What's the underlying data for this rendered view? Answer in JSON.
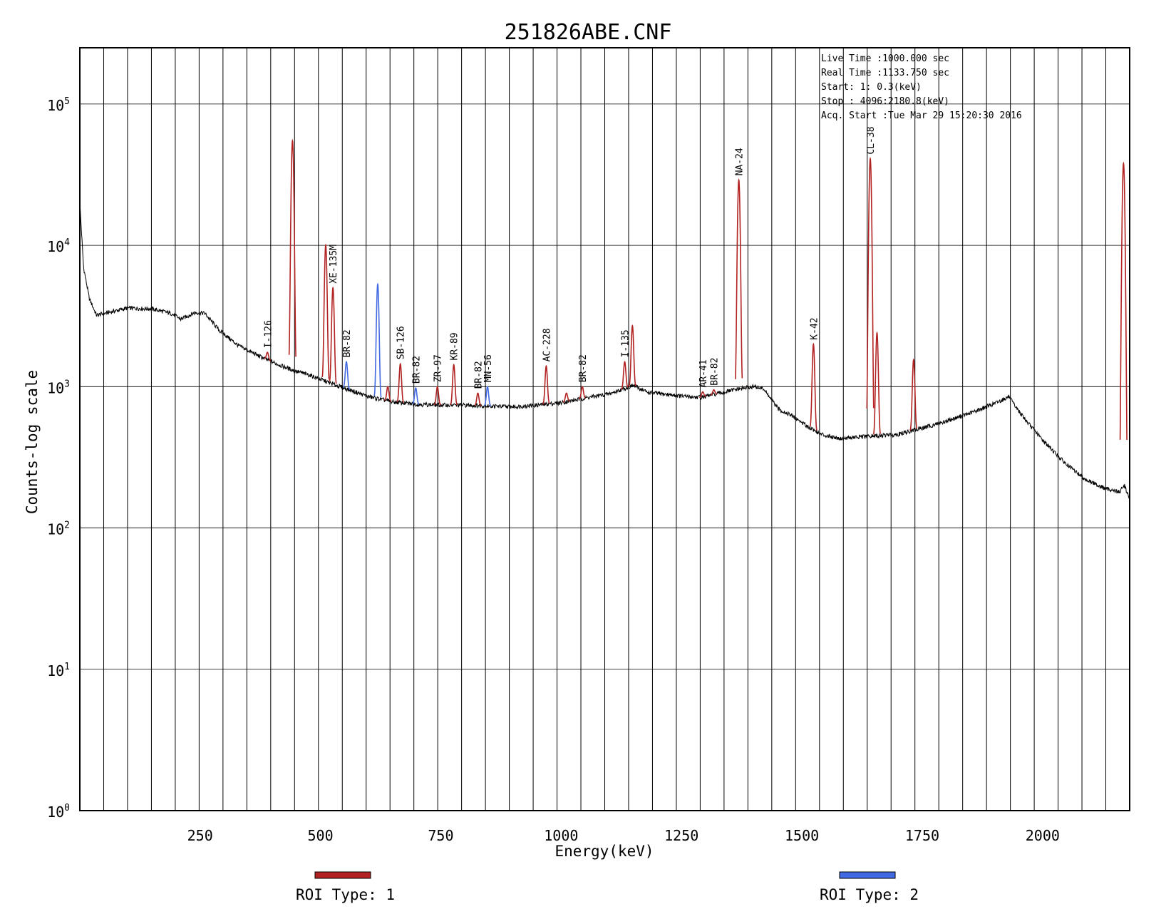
{
  "chart_data": {
    "type": "line",
    "title": "251826ABE.CNF",
    "xlabel": "Energy(keV)",
    "ylabel": "Counts-log scale",
    "y_scale": "log",
    "xlim": [
      0.3,
      2180.8
    ],
    "ylim": [
      1,
      250000
    ],
    "x_ticks": [
      250,
      500,
      750,
      1000,
      1250,
      1500,
      1750,
      2000
    ],
    "x_tick_labels": [
      "250",
      "500",
      "750",
      "1000",
      "1250",
      "1500",
      "1750",
      "2000"
    ],
    "y_ticks": [
      {
        "value": 1,
        "base": "10",
        "exp": "0"
      },
      {
        "value": 10,
        "base": "10",
        "exp": "1"
      },
      {
        "value": 100,
        "base": "10",
        "exp": "2"
      },
      {
        "value": 1000,
        "base": "10",
        "exp": "3"
      },
      {
        "value": 10000,
        "base": "10",
        "exp": "4"
      },
      {
        "value": 100000,
        "base": "10",
        "exp": "5"
      }
    ],
    "grid": true,
    "info_box": [
      "Live Time :1000.000 sec",
      "Real Time :1133.750 sec",
      "Start:    1:   0.3(keV)",
      "Stop : 4096:2180.8(keV)",
      "Acq. Start :Tue Mar 29 15:20:30 2016"
    ],
    "continuum": [
      [
        0.3,
        20000
      ],
      [
        8,
        7000
      ],
      [
        20,
        4200
      ],
      [
        35,
        3200
      ],
      [
        60,
        3350
      ],
      [
        100,
        3600
      ],
      [
        150,
        3550
      ],
      [
        190,
        3300
      ],
      [
        210,
        3000
      ],
      [
        240,
        3350
      ],
      [
        260,
        3300
      ],
      [
        290,
        2500
      ],
      [
        330,
        1950
      ],
      [
        380,
        1600
      ],
      [
        420,
        1400
      ],
      [
        445,
        1300
      ],
      [
        480,
        1200
      ],
      [
        520,
        1060
      ],
      [
        560,
        950
      ],
      [
        600,
        850
      ],
      [
        650,
        780
      ],
      [
        700,
        750
      ],
      [
        750,
        740
      ],
      [
        800,
        740
      ],
      [
        850,
        730
      ],
      [
        900,
        720
      ],
      [
        950,
        740
      ],
      [
        1000,
        770
      ],
      [
        1050,
        830
      ],
      [
        1100,
        890
      ],
      [
        1150,
        1020
      ],
      [
        1180,
        910
      ],
      [
        1220,
        880
      ],
      [
        1260,
        850
      ],
      [
        1290,
        840
      ],
      [
        1330,
        900
      ],
      [
        1360,
        950
      ],
      [
        1400,
        1000
      ],
      [
        1420,
        970
      ],
      [
        1450,
        700
      ],
      [
        1480,
        620
      ],
      [
        1510,
        530
      ],
      [
        1540,
        460
      ],
      [
        1580,
        430
      ],
      [
        1620,
        440
      ],
      [
        1660,
        450
      ],
      [
        1700,
        460
      ],
      [
        1760,
        520
      ],
      [
        1800,
        570
      ],
      [
        1850,
        650
      ],
      [
        1900,
        760
      ],
      [
        1930,
        850
      ],
      [
        1940,
        750
      ],
      [
        1970,
        550
      ],
      [
        2000,
        420
      ],
      [
        2050,
        280
      ],
      [
        2090,
        220
      ],
      [
        2130,
        190
      ],
      [
        2160,
        180
      ],
      [
        2170,
        200
      ],
      [
        2180.8,
        160
      ]
    ],
    "peaks": [
      {
        "energy": 390,
        "counts": 1750,
        "roi_type": 1,
        "label": "I-126"
      },
      {
        "energy": 442,
        "counts": 55000,
        "roi_type": 1,
        "label": ""
      },
      {
        "energy": 511,
        "counts": 10000,
        "roi_type": 1,
        "label": ""
      },
      {
        "energy": 526,
        "counts": 5000,
        "roi_type": 1,
        "label": "XE-135M"
      },
      {
        "energy": 554,
        "counts": 1500,
        "roi_type": 2,
        "label": "BR-82"
      },
      {
        "energy": 619,
        "counts": 5300,
        "roi_type": 2,
        "label": ""
      },
      {
        "energy": 640,
        "counts": 1000,
        "roi_type": 1,
        "label": ""
      },
      {
        "energy": 666,
        "counts": 1450,
        "roi_type": 1,
        "label": "SB-126"
      },
      {
        "energy": 698,
        "counts": 980,
        "roi_type": 2,
        "label": "BR-82"
      },
      {
        "energy": 743,
        "counts": 1000,
        "roi_type": 1,
        "label": "ZR-97"
      },
      {
        "energy": 777,
        "counts": 1430,
        "roi_type": 1,
        "label": "KR-89"
      },
      {
        "energy": 827,
        "counts": 900,
        "roi_type": 1,
        "label": "BR-82"
      },
      {
        "energy": 847,
        "counts": 1000,
        "roi_type": 2,
        "label": "MN-56"
      },
      {
        "energy": 969,
        "counts": 1400,
        "roi_type": 1,
        "label": "AC-228"
      },
      {
        "energy": 1011,
        "counts": 900,
        "roi_type": 1,
        "label": ""
      },
      {
        "energy": 1044,
        "counts": 1000,
        "roi_type": 1,
        "label": "BR-82"
      },
      {
        "energy": 1132,
        "counts": 1500,
        "roi_type": 1,
        "label": "I-135"
      },
      {
        "energy": 1148,
        "counts": 2700,
        "roi_type": 1,
        "label": ""
      },
      {
        "energy": 1294,
        "counts": 920,
        "roi_type": 1,
        "label": "AR-41"
      },
      {
        "energy": 1317,
        "counts": 950,
        "roi_type": 1,
        "label": "BR-82"
      },
      {
        "energy": 1369,
        "counts": 29000,
        "roi_type": 1,
        "label": "NA-24"
      },
      {
        "energy": 1524,
        "counts": 2000,
        "roi_type": 1,
        "label": "K-42"
      },
      {
        "energy": 1642,
        "counts": 41000,
        "roi_type": 1,
        "label": "CL-38"
      },
      {
        "energy": 1656,
        "counts": 2400,
        "roi_type": 1,
        "label": ""
      },
      {
        "energy": 1732,
        "counts": 1550,
        "roi_type": 1,
        "label": ""
      },
      {
        "energy": 2168,
        "counts": 38000,
        "roi_type": 1,
        "label": ""
      }
    ],
    "legend": [
      {
        "label": "ROI Type: 1",
        "color": "#b22222"
      },
      {
        "label": "ROI Type: 2",
        "color": "#4169e1"
      }
    ],
    "colors": {
      "spectrum": "#000000",
      "roi_1": "#b22222",
      "roi_2": "#4169e1",
      "grid": "#000000"
    }
  }
}
